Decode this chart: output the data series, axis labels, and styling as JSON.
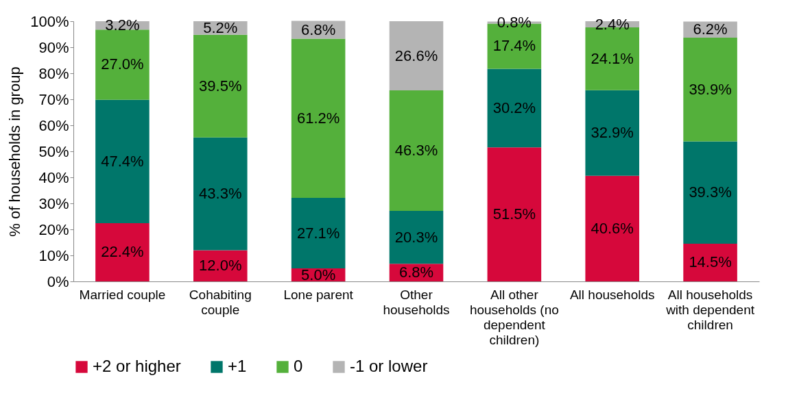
{
  "chart_data": {
    "type": "bar",
    "stacked": true,
    "ylabel": "% of households in group",
    "categories": [
      "Married couple",
      "Cohabiting couple",
      "Lone parent",
      "Other households",
      "All other households (no dependent children)",
      "All households",
      "All households with dependent children"
    ],
    "series": [
      {
        "name": "+2 or higher",
        "color": "#d6083b",
        "values": [
          22.4,
          12.0,
          5.0,
          6.8,
          51.5,
          40.6,
          14.5
        ],
        "value_labels": [
          "22.4%",
          "12.0%",
          "5.0%",
          "6.8%",
          "51.5%",
          "40.6%",
          "14.5%"
        ]
      },
      {
        "name": "+1",
        "color": "#00766a",
        "values": [
          47.4,
          43.3,
          27.1,
          20.3,
          30.2,
          32.9,
          39.3
        ],
        "value_labels": [
          "47.4%",
          "43.3%",
          "27.1%",
          "20.3%",
          "30.2%",
          "32.9%",
          "39.3%"
        ]
      },
      {
        "name": "0",
        "color": "#54b03b",
        "values": [
          27.0,
          39.5,
          61.2,
          46.3,
          17.4,
          24.1,
          39.9
        ],
        "value_labels": [
          "27.0%",
          "39.5%",
          "61.2%",
          "46.3%",
          "17.4%",
          "24.1%",
          "39.9%"
        ]
      },
      {
        "name": "-1 or lower",
        "color": "#b4b4b4",
        "values": [
          3.2,
          5.2,
          6.8,
          26.6,
          0.8,
          2.4,
          6.2
        ],
        "value_labels": [
          "3.2%",
          "5.2%",
          "6.8%",
          "26.6%",
          "0.8%",
          "2.4%",
          "6.2%"
        ]
      }
    ],
    "ylim": [
      0,
      100
    ],
    "yticks": [
      {
        "value": 0,
        "label": "0%"
      },
      {
        "value": 10,
        "label": "10%"
      },
      {
        "value": 20,
        "label": "20%"
      },
      {
        "value": 30,
        "label": "30%"
      },
      {
        "value": 40,
        "label": "40%"
      },
      {
        "value": 50,
        "label": "50%"
      },
      {
        "value": 60,
        "label": "60%"
      },
      {
        "value": 70,
        "label": "70%"
      },
      {
        "value": 80,
        "label": "80%"
      },
      {
        "value": 90,
        "label": "90%"
      },
      {
        "value": 100,
        "label": "100%"
      }
    ],
    "grid": false,
    "legend": "bottom"
  }
}
